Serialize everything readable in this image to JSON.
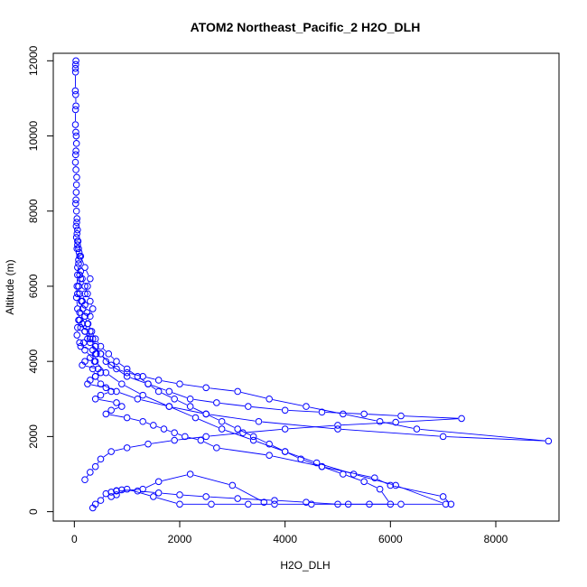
{
  "chart_data": {
    "type": "line",
    "title": "ATOM2 Northeast_Pacific_2 H2O_DLH",
    "xlabel": "H2O_DLH",
    "ylabel": "Altitude (m)",
    "xlim": [
      -400,
      9200
    ],
    "ylim": [
      -250,
      12200
    ],
    "x_ticks": [
      0,
      2000,
      4000,
      6000,
      8000
    ],
    "y_ticks": [
      0,
      2000,
      4000,
      6000,
      8000,
      10000,
      12000
    ],
    "series_color": "#0000ff",
    "series": [
      {
        "x": [
          30,
          25,
          20,
          22,
          18,
          25,
          30,
          22,
          20,
          28,
          35,
          40,
          30,
          25,
          20,
          30,
          45,
          40,
          35,
          30,
          25,
          40,
          50,
          45,
          35,
          60,
          50,
          40,
          70,
          60,
          50,
          90,
          80,
          60,
          100,
          120,
          80,
          60,
          150,
          200,
          240,
          200,
          150,
          120,
          300,
          250,
          180,
          120,
          350,
          400,
          300,
          200,
          150,
          450,
          500,
          400,
          300,
          250,
          600,
          700,
          500,
          400,
          800,
          900,
          700,
          600,
          1000,
          1300,
          1500,
          1700,
          1900,
          2100,
          2400,
          2700,
          3700,
          4700,
          5700,
          6000,
          7000,
          7150
        ],
        "y": [
          12000,
          11900,
          11800,
          11700,
          11200,
          11100,
          10800,
          10700,
          10300,
          10100,
          10000,
          9800,
          9600,
          9500,
          9300,
          9100,
          8900,
          8700,
          8500,
          8300,
          8200,
          8000,
          7800,
          7700,
          7600,
          7500,
          7400,
          7300,
          7200,
          7100,
          7000,
          6900,
          6700,
          6500,
          6300,
          6200,
          6000,
          5800,
          5600,
          5500,
          5300,
          5200,
          5000,
          4900,
          4800,
          4600,
          4500,
          4400,
          4300,
          4200,
          4100,
          4000,
          3900,
          3800,
          3700,
          3600,
          3500,
          3400,
          3300,
          3200,
          3100,
          3000,
          2900,
          2800,
          2700,
          2600,
          2500,
          2400,
          2300,
          2200,
          2100,
          2000,
          1900,
          1700,
          1500,
          1200,
          900,
          700,
          400,
          200
        ]
      },
      {
        "x": [
          60,
          80,
          120,
          200,
          300,
          250,
          200,
          150,
          100,
          80,
          60,
          50,
          100,
          200,
          400,
          600,
          900,
          1300,
          1800,
          2300,
          2800,
          3400,
          4000,
          4600,
          5300,
          6100,
          7050,
          6200,
          5200,
          4500,
          3800,
          3300,
          2600,
          2000,
          1500,
          1000,
          800,
          700,
          800,
          1300,
          1600,
          2200,
          3000,
          3600
        ],
        "y": [
          7200,
          7000,
          6800,
          6500,
          6200,
          6000,
          5800,
          5600,
          5300,
          5100,
          4900,
          4700,
          4500,
          4300,
          4000,
          3700,
          3400,
          3100,
          2800,
          2500,
          2200,
          1900,
          1600,
          1300,
          1000,
          700,
          200,
          200,
          200,
          200,
          200,
          200,
          200,
          200,
          400,
          600,
          450,
          400,
          550,
          600,
          800,
          1000,
          700,
          250
        ]
      },
      {
        "x": [
          100,
          80,
          60,
          50,
          40,
          60,
          100,
          200,
          300,
          500,
          700,
          1000,
          1400,
          1800,
          2200,
          2700,
          3300,
          4000,
          4700,
          5500,
          6200,
          7350,
          6100,
          5000,
          4000,
          3200,
          2500,
          1900,
          1400,
          1000,
          700,
          500,
          400,
          300,
          200
        ],
        "y": [
          6800,
          6600,
          6300,
          6000,
          5700,
          5400,
          5100,
          4800,
          4500,
          4200,
          3900,
          3600,
          3400,
          3200,
          3000,
          2900,
          2800,
          2700,
          2650,
          2600,
          2550,
          2480,
          2380,
          2300,
          2200,
          2100,
          2000,
          1900,
          1800,
          1700,
          1600,
          1400,
          1200,
          1050,
          850
        ]
      },
      {
        "x": [
          120,
          150,
          200,
          250,
          300,
          350,
          300,
          250,
          200,
          300,
          400,
          500,
          600,
          800,
          1000,
          1300,
          1600,
          2000,
          2500,
          3100,
          3700,
          4400,
          5100,
          5800,
          6500,
          9000,
          7000,
          5000,
          3500,
          2500,
          1800,
          1200,
          800,
          500,
          400,
          350,
          380,
          420,
          400,
          350
        ],
        "y": [
          6400,
          6200,
          6000,
          5800,
          5600,
          5400,
          5200,
          5000,
          4800,
          4600,
          4400,
          4200,
          4000,
          3800,
          3700,
          3600,
          3500,
          3400,
          3300,
          3200,
          3000,
          2800,
          2600,
          2400,
          2200,
          1880,
          2000,
          2200,
          2400,
          2600,
          2800,
          3000,
          3200,
          3400,
          3600,
          3800,
          4000,
          4200,
          4400,
          4600
        ]
      },
      {
        "x": [
          80,
          100,
          130,
          160,
          200,
          260,
          330,
          400,
          500,
          650,
          800,
          1000,
          1200,
          1400,
          1600,
          1900,
          2200,
          2500,
          2800,
          3100,
          3400,
          3700,
          4000,
          4300,
          4700,
          5100,
          5500,
          5800,
          6000,
          5600,
          5000,
          4400,
          3800,
          3100,
          2500,
          2000,
          1600,
          1200,
          900,
          800,
          700,
          600,
          500,
          400,
          350
        ],
        "y": [
          6000,
          5800,
          5600,
          5400,
          5200,
          5000,
          4800,
          4600,
          4400,
          4200,
          4000,
          3800,
          3600,
          3400,
          3200,
          3000,
          2800,
          2600,
          2400,
          2200,
          2000,
          1800,
          1600,
          1400,
          1200,
          1000,
          800,
          600,
          200,
          200,
          200,
          250,
          300,
          350,
          400,
          450,
          500,
          550,
          580,
          560,
          520,
          480,
          300,
          200,
          100
        ]
      }
    ]
  }
}
